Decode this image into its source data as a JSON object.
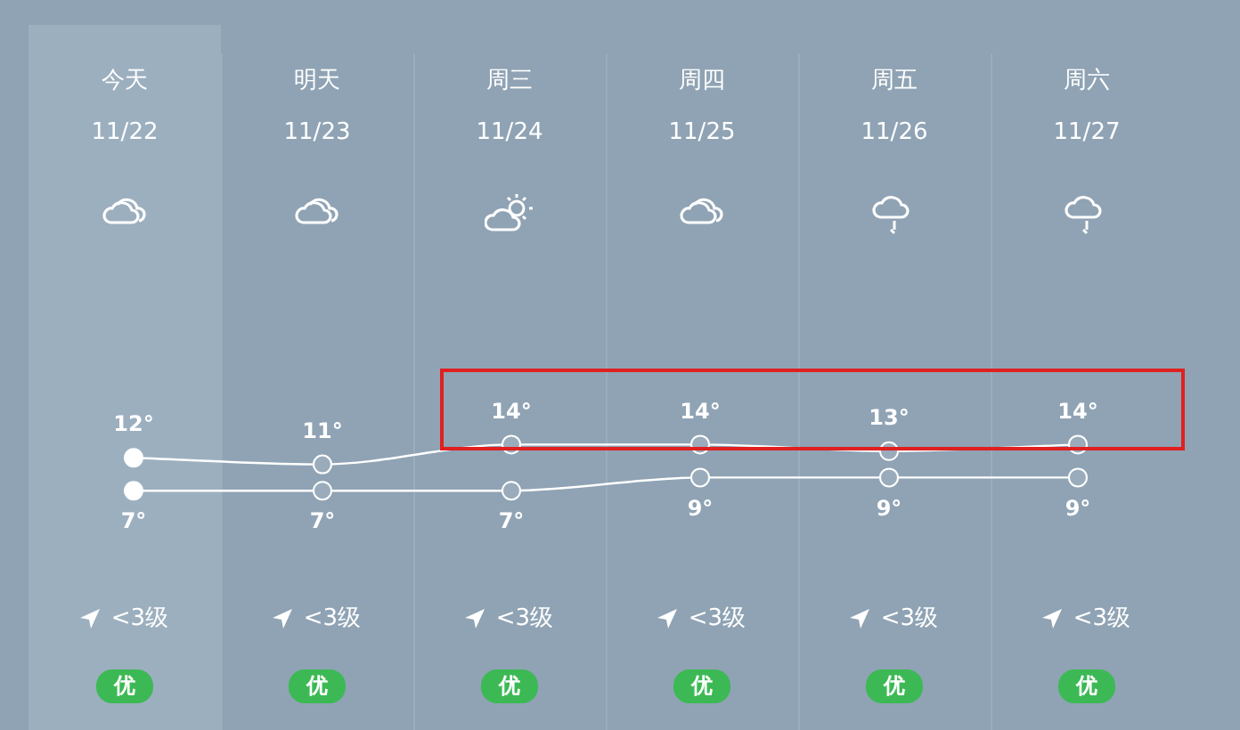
{
  "chart_data": {
    "type": "line",
    "categories": [
      "今天",
      "明天",
      "周三",
      "周四",
      "周五",
      "周六"
    ],
    "series": [
      {
        "color": "#ffffff",
        "values": [
          12,
          11,
          14,
          14,
          13,
          14
        ],
        "value_labels": [
          "12°",
          "11°",
          "14°",
          "14°",
          "13°",
          "14°"
        ]
      },
      {
        "color": "#ffffff",
        "values": [
          7,
          7,
          7,
          9,
          9,
          9
        ],
        "value_labels": [
          "7°",
          "7°",
          "7°",
          "9°",
          "9°",
          "9°"
        ]
      }
    ],
    "annotations": [
      "11/22",
      "11/23",
      "11/24",
      "11/25",
      "11/26",
      "11/27",
      "<3级",
      "<3级",
      "<3级",
      "<3级",
      "<3级",
      "<3级",
      "优",
      "优",
      "优",
      "优",
      "优",
      "优"
    ],
    "bands": [
      {
        "axis": "x",
        "from": "今天",
        "to": "今天",
        "color": "#9cafbf"
      }
    ],
    "legend": false,
    "grid": false,
    "marker": "circle",
    "tick_labels": "x"
  }
}
